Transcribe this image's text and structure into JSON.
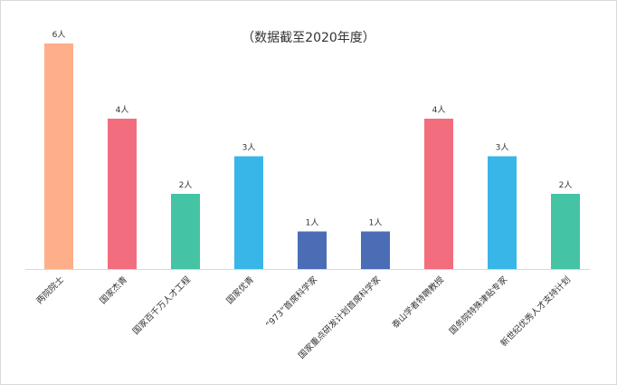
{
  "chart_data": {
    "type": "bar",
    "title": "（数据截至2020年度）",
    "xlabel": "",
    "ylabel": "",
    "ylim": [
      0,
      6
    ],
    "grid": false,
    "unit_suffix": "人",
    "categories": [
      "两院院士",
      "国家杰青",
      "国家百千万人才工程",
      "国家优青",
      "“973”首席科学家",
      "国家重点研发计划首席科学家",
      "泰山学者特聘教授",
      "国务院特殊津贴专家",
      "新世纪优秀人才支持计划"
    ],
    "values": [
      6,
      4,
      2,
      3,
      1,
      1,
      4,
      3,
      2
    ],
    "value_labels": [
      "6人",
      "4人",
      "2人",
      "3人",
      "1人",
      "1人",
      "4人",
      "3人",
      "2人"
    ],
    "colors": [
      "#FFAE8A",
      "#F26D7E",
      "#45C3A5",
      "#39B6E8",
      "#4A6DB5",
      "#4A6DB5",
      "#F26D7E",
      "#39B6E8",
      "#45C3A5"
    ]
  }
}
